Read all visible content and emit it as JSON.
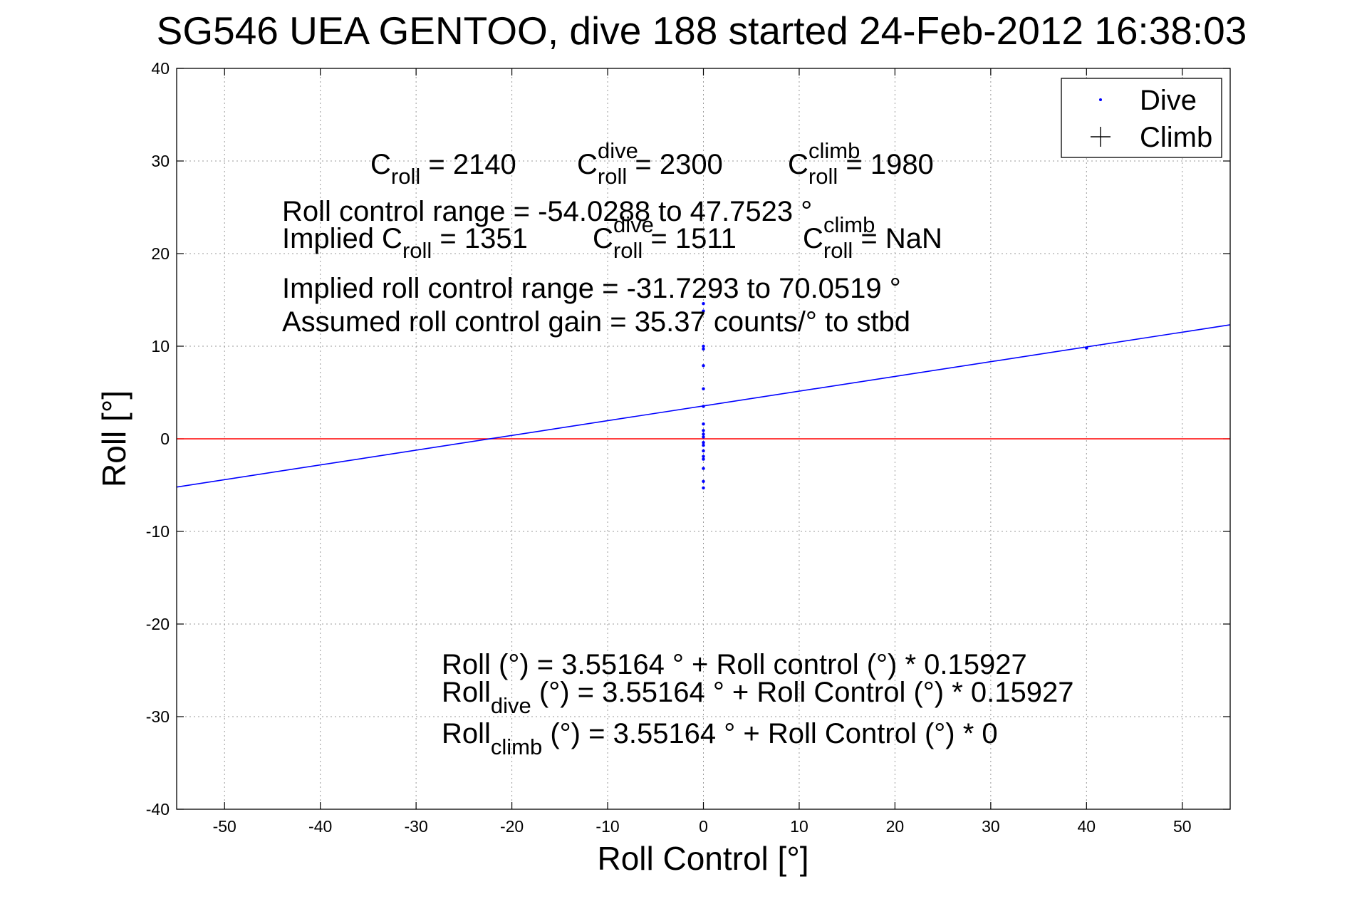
{
  "chart_data": {
    "type": "scatter",
    "title": "SG546 UEA GENTOO, dive 188 started 24-Feb-2012 16:38:03",
    "xlabel": "Roll Control [°]",
    "ylabel": "Roll [°]",
    "xlim": [
      -55,
      55
    ],
    "ylim": [
      -40,
      40
    ],
    "xticks": [
      -50,
      -40,
      -30,
      -20,
      -10,
      0,
      10,
      20,
      30,
      40,
      50
    ],
    "yticks": [
      -40,
      -30,
      -20,
      -10,
      0,
      10,
      20,
      30,
      40
    ],
    "grid": true,
    "legend_position": "top-right",
    "legend": [
      {
        "label": "Dive",
        "marker": "dot",
        "color": "#0000ff"
      },
      {
        "label": "Climb",
        "marker": "plus",
        "color": "#000000"
      }
    ],
    "series": [
      {
        "name": "Dive",
        "marker": "dot",
        "color": "#0000ff",
        "points": [
          [
            0,
            14.6
          ],
          [
            0,
            13.8
          ],
          [
            0,
            10.0
          ],
          [
            0,
            9.7
          ],
          [
            0,
            7.9
          ],
          [
            0,
            5.4
          ],
          [
            0,
            3.5
          ],
          [
            0,
            1.6
          ],
          [
            0,
            0.9
          ],
          [
            0,
            0.5
          ],
          [
            0,
            0.2
          ],
          [
            0,
            -0.4
          ],
          [
            0,
            -0.7
          ],
          [
            0,
            -1.3
          ],
          [
            0,
            -1.9
          ],
          [
            0,
            -2.2
          ],
          [
            0,
            -3.2
          ],
          [
            0,
            -4.6
          ],
          [
            0,
            -5.3
          ],
          [
            40,
            9.8
          ]
        ]
      },
      {
        "name": "Climb",
        "marker": "plus",
        "color": "#000000",
        "points": []
      }
    ],
    "lines": [
      {
        "kind": "fit",
        "color": "#0000ff",
        "intercept": 3.55164,
        "slope": 0.15927
      },
      {
        "kind": "zero",
        "color": "#ff0000",
        "y": 0
      }
    ],
    "annotations": {
      "c_row": [
        {
          "main": "C",
          "sub": "roll",
          "sup": "",
          "rest": " = 2140"
        },
        {
          "main": "C",
          "sub": "roll",
          "sup": "dive",
          "rest": " = 2300"
        },
        {
          "main": "C",
          "sub": "roll",
          "sup": "climb",
          "rest": " = 1980"
        }
      ],
      "roll_control_range": "Roll control range = -54.0288 to 47.7523 °",
      "implied_row": [
        {
          "main": "Implied C",
          "sub": "roll",
          "sup": "",
          "rest": " = 1351"
        },
        {
          "main": "C",
          "sub": "roll",
          "sup": "dive",
          "rest": " = 1511"
        },
        {
          "main": "C",
          "sub": "roll",
          "sup": "climb",
          "rest": " =  NaN"
        }
      ],
      "implied_range": "Implied roll control range = -31.7293 to 70.0519 °",
      "gain": "Assumed roll control gain = 35.37 counts/° to stbd",
      "eq_all": {
        "main": "Roll",
        "sub": "",
        "rest": " (°) = 3.55164 ° + Roll control (°) * 0.15927"
      },
      "eq_dive": {
        "main": "Roll",
        "sub": "dive",
        "rest": " (°) = 3.55164 ° + Roll Control (°) * 0.15927"
      },
      "eq_climb": {
        "main": "Roll",
        "sub": "climb",
        "rest": " (°) = 3.55164 ° + Roll Control (°) * 0"
      }
    }
  }
}
